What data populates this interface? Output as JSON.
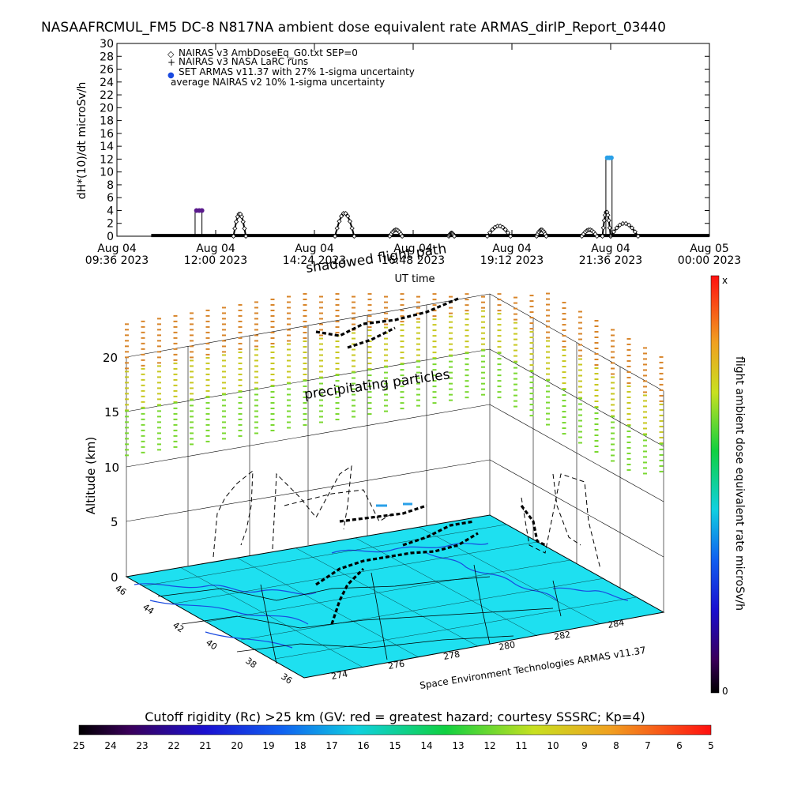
{
  "title": "NASAAFRCMUL_FM5 DC-8   N817NA ambient dose equivalent rate ARMAS_dirIP_Report_03440",
  "colors": {
    "armas": "#2aa0e8",
    "armas_early": "#5a1a8c",
    "precip_high": "#d8852a",
    "precip_mid": "#c8c820",
    "precip_low": "#7ad830",
    "ocean": "#1ee0f0",
    "coast": "#1a4ae0",
    "track": "#000000"
  },
  "chart_data": [
    {
      "type": "scatter",
      "ylabel": "dH*(10)/dt microSv/h",
      "xlabel": "UT time",
      "ylim": [
        0,
        30
      ],
      "yticks": [
        0,
        2,
        4,
        6,
        8,
        10,
        12,
        14,
        16,
        18,
        20,
        22,
        24,
        26,
        28,
        30
      ],
      "xticks": [
        {
          "t": 0,
          "l1": "Aug 04",
          "l2": "09:36 2023"
        },
        {
          "t": 144,
          "l1": "Aug 04",
          "l2": "12:00 2023"
        },
        {
          "t": 288,
          "l1": "Aug 04",
          "l2": "14:24 2023"
        },
        {
          "t": 432,
          "l1": "Aug 04",
          "l2": "16:48 2023"
        },
        {
          "t": 576,
          "l1": "Aug 04",
          "l2": "19:12 2023"
        },
        {
          "t": 720,
          "l1": "Aug 04",
          "l2": "21:36 2023"
        },
        {
          "t": 864,
          "l1": "Aug 05",
          "l2": "00:00 2023"
        }
      ],
      "legend": [
        {
          "symbol": "◇",
          "label": "NAIRAS v3 AmbDoseEq_G0.txt SEP=0"
        },
        {
          "symbol": "+",
          "label": "NAIRAS v3 NASA LaRC runs"
        },
        {
          "symbol": "●",
          "label": "SET ARMAS v11.37 with 27% 1-sigma uncertainty"
        },
        {
          "symbol": "",
          "label": "average NAIRAS v2 10% 1-sigma uncertainty"
        }
      ],
      "legend_position": "top-left",
      "baseline": {
        "t_start": 50,
        "t_end": 864,
        "value": 0.1
      },
      "nairas_bumps": [
        {
          "t0": 170,
          "t1": 188,
          "peak": 3.5
        },
        {
          "t0": 318,
          "t1": 346,
          "peak": 3.6
        },
        {
          "t0": 398,
          "t1": 416,
          "peak": 1.0
        },
        {
          "t0": 484,
          "t1": 492,
          "peak": 0.5
        },
        {
          "t0": 540,
          "t1": 574,
          "peak": 1.6
        },
        {
          "t0": 612,
          "t1": 626,
          "peak": 1.0
        },
        {
          "t0": 678,
          "t1": 700,
          "peak": 1.0
        },
        {
          "t0": 708,
          "t1": 720,
          "peak": 3.8
        },
        {
          "t0": 720,
          "t1": 760,
          "peak": 2.0
        }
      ],
      "armas_points": [
        {
          "t": 116,
          "v": 4.0
        },
        {
          "t": 120,
          "v": 4.0
        },
        {
          "t": 124,
          "v": 4.0
        },
        {
          "t": 715,
          "v": 12.2
        },
        {
          "t": 718,
          "v": 12.2
        },
        {
          "t": 721,
          "v": 12.2
        }
      ],
      "uncertainty_boxes": [
        {
          "t0": 114,
          "t1": 124,
          "lo": 0,
          "hi": 4.0
        },
        {
          "t0": 713,
          "t1": 722,
          "lo": 0,
          "hi": 12.2
        }
      ]
    },
    {
      "type": "3d-trajectory",
      "ylabel": "Altitude (km)",
      "zticks": [
        0,
        5,
        10,
        15,
        20
      ],
      "lat_ticks": [
        "36",
        "38",
        "40",
        "42",
        "44",
        "46"
      ],
      "lon_ticks": [
        "274",
        "276",
        "278",
        "280",
        "282",
        "284"
      ],
      "colorbar_label": "flight ambient dose equivalent rate microSv/h",
      "colorbar_top": "x",
      "colorbar_bottom": "0",
      "annotation_precip": "precipitating particles",
      "annotation_shadowed": "shadowed flight path",
      "credit": "Space Environment Technologies ARMAS v11.37"
    },
    {
      "type": "colorbar",
      "title": "Cutoff rigidity (Rc) >25 km (GV: red = greatest hazard; courtesy SSSRC; Kp=4)",
      "ticks": [
        "25",
        "24",
        "23",
        "22",
        "21",
        "20",
        "19",
        "18",
        "17",
        "16",
        "15",
        "14",
        "13",
        "12",
        "11",
        "10",
        "9",
        "8",
        "7",
        "6",
        "5"
      ]
    }
  ]
}
